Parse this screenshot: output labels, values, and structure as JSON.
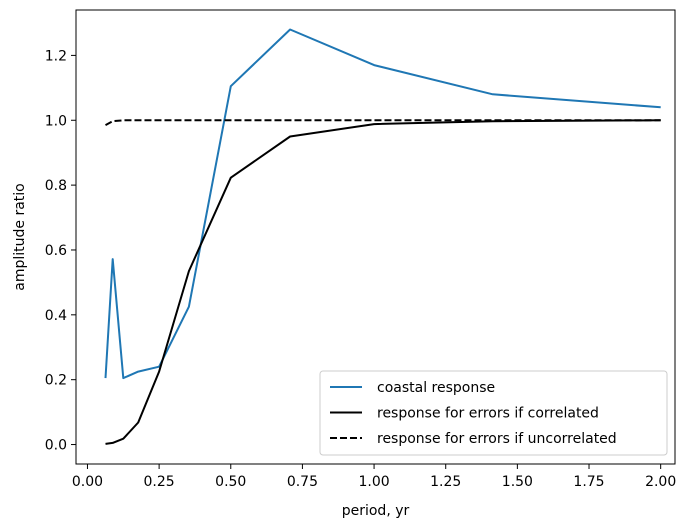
{
  "chart_data": {
    "type": "line",
    "title": "",
    "xlabel": "period, yr",
    "ylabel": "amplitude ratio",
    "xlim": [
      -0.04,
      2.05
    ],
    "ylim": [
      -0.06,
      1.34
    ],
    "grid": false,
    "legend_position": "lower-right",
    "x_ticks": [
      0.0,
      0.25,
      0.5,
      0.75,
      1.0,
      1.25,
      1.5,
      1.75,
      2.0
    ],
    "x_tick_labels": [
      "0.00",
      "0.25",
      "0.50",
      "0.75",
      "1.00",
      "1.25",
      "1.50",
      "1.75",
      "2.00"
    ],
    "y_ticks": [
      0.0,
      0.2,
      0.4,
      0.6,
      0.8,
      1.0,
      1.2
    ],
    "y_tick_labels": [
      "0.0",
      "0.2",
      "0.4",
      "0.6",
      "0.8",
      "1.0",
      "1.2"
    ],
    "series": [
      {
        "name": "coastal response",
        "color": "#1f77b4",
        "style": "solid",
        "x": [
          0.063,
          0.088,
          0.125,
          0.177,
          0.25,
          0.354,
          0.5,
          0.707,
          1.0,
          1.414,
          2.0
        ],
        "y": [
          0.205,
          0.572,
          0.205,
          0.225,
          0.24,
          0.425,
          1.105,
          1.28,
          1.17,
          1.08,
          1.04
        ]
      },
      {
        "name": "response for errors if correlated",
        "color": "#000000",
        "style": "solid",
        "x": [
          0.063,
          0.088,
          0.125,
          0.177,
          0.25,
          0.354,
          0.5,
          0.707,
          1.0,
          1.414,
          2.0
        ],
        "y": [
          0.002,
          0.005,
          0.018,
          0.068,
          0.225,
          0.535,
          0.823,
          0.95,
          0.988,
          0.997,
          1.0
        ]
      },
      {
        "name": "response for errors if uncorrelated",
        "color": "#000000",
        "style": "dashed",
        "x": [
          0.063,
          0.088,
          0.125,
          0.177,
          0.25,
          0.354,
          0.5,
          0.707,
          1.0,
          1.414,
          2.0
        ],
        "y": [
          0.985,
          0.997,
          1.0,
          1.0,
          1.0,
          1.0,
          1.0,
          1.0,
          1.0,
          1.0,
          1.0
        ]
      }
    ]
  }
}
